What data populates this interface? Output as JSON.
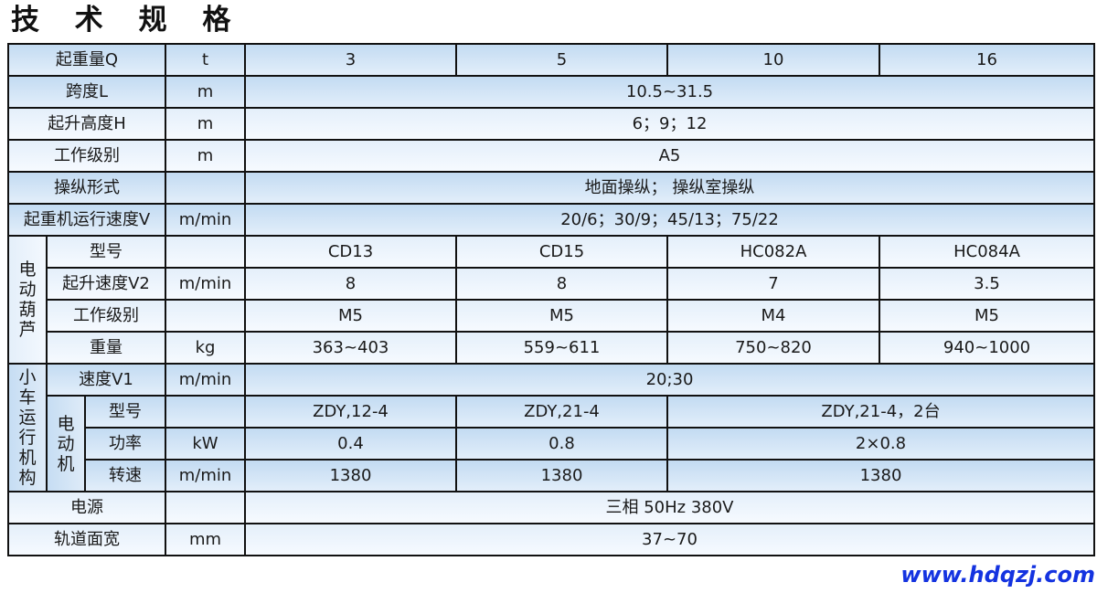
{
  "title": "技 术 规 格",
  "rows": {
    "r1": {
      "label": "起重量Q",
      "unit": "t",
      "values": [
        "3",
        "5",
        "10",
        "16"
      ]
    },
    "r2": {
      "label": "跨度L",
      "unit": "m",
      "value": "10.5~31.5"
    },
    "r3": {
      "label": "起升高度H",
      "unit": "m",
      "value": "6；9；12"
    },
    "r4": {
      "label": "工作级别",
      "unit": "m",
      "value": "A5"
    },
    "r5": {
      "label": "操纵形式",
      "unit": "",
      "value": "地面操纵； 操纵室操纵"
    },
    "r6": {
      "label": "起重机运行速度V",
      "unit": "m/min",
      "value": "20/6；30/9；45/13；75/22"
    },
    "hoist": {
      "group": "电动葫芦",
      "model": {
        "label": "型号",
        "unit": "",
        "values": [
          "CD13",
          "CD15",
          "HC082A",
          "HC084A"
        ]
      },
      "speed": {
        "label": "起升速度V2",
        "unit": "m/min",
        "values": [
          "8",
          "8",
          "7",
          "3.5"
        ]
      },
      "duty": {
        "label": "工作级别",
        "unit": "",
        "values": [
          "M5",
          "M5",
          "M4",
          "M5"
        ]
      },
      "weight": {
        "label": "重量",
        "unit": "kg",
        "values": [
          "363~403",
          "559~611",
          "750~820",
          "940~1000"
        ]
      }
    },
    "trolley": {
      "group": "小车运行机构",
      "speed": {
        "label": "速度V1",
        "unit": "m/min",
        "value": "20;30"
      },
      "motor": {
        "group": "电动机",
        "model": {
          "label": "型号",
          "unit": "",
          "values": [
            "ZDY,12-4",
            "ZDY,21-4",
            "ZDY,21-4，2台"
          ]
        },
        "power": {
          "label": "功率",
          "unit": "kW",
          "values": [
            "0.4",
            "0.8",
            "2×0.8"
          ]
        },
        "rpm": {
          "label": "转速",
          "unit": "m/min",
          "values": [
            "1380",
            "1380",
            "1380"
          ]
        }
      }
    },
    "power": {
      "label": "电源",
      "unit": "",
      "value": "三相 50Hz 380V"
    },
    "rail": {
      "label": "轨道面宽",
      "unit": "mm",
      "value": "37~70"
    }
  },
  "watermark": "www.hdqzj.com"
}
